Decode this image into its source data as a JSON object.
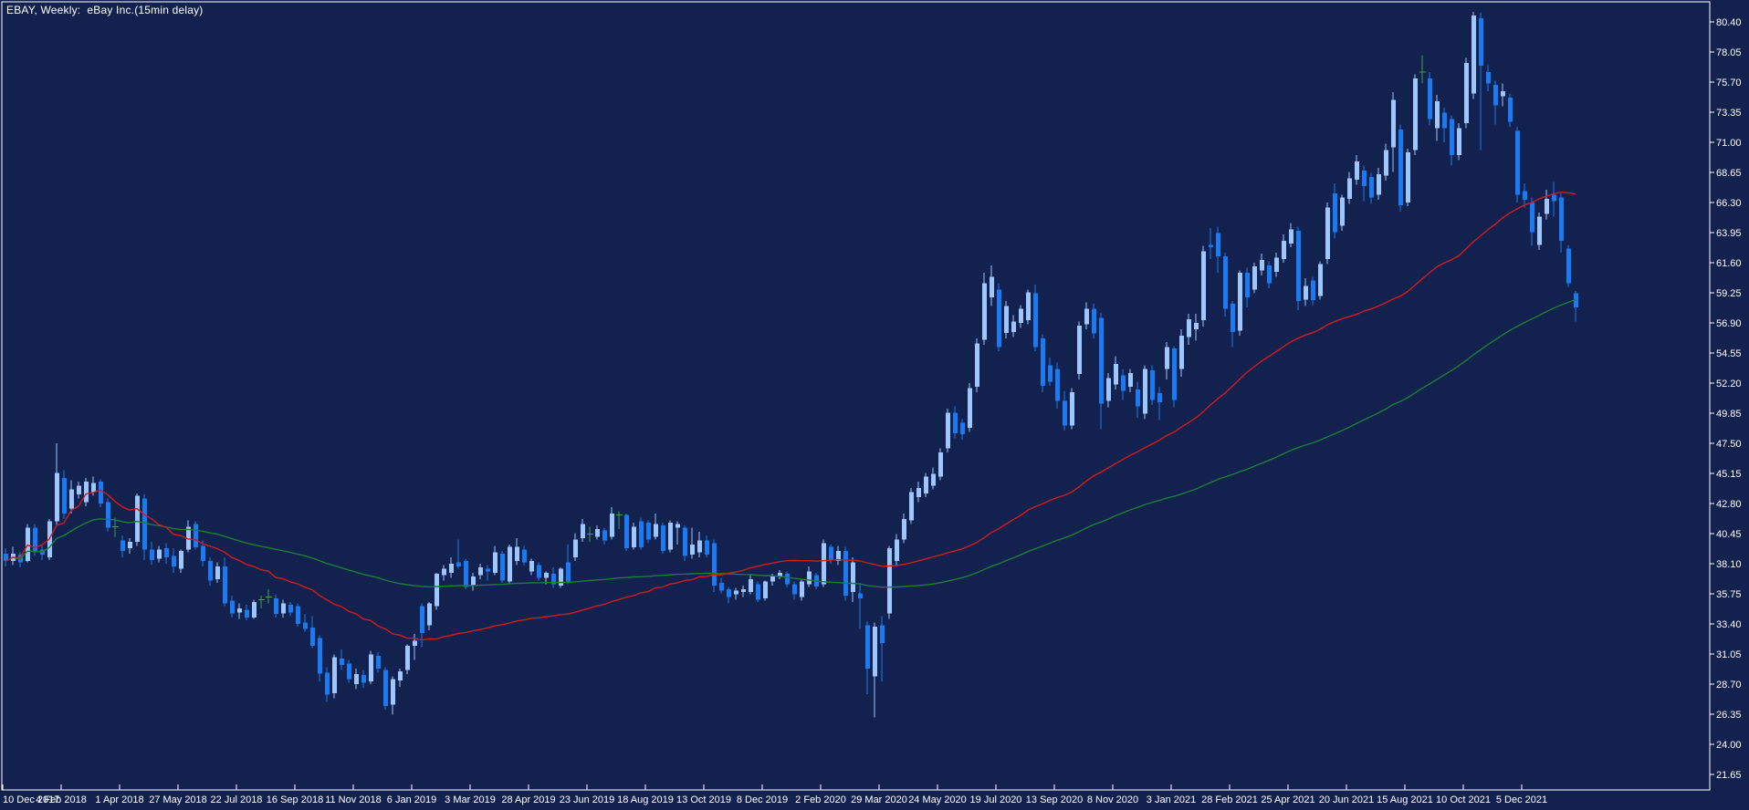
{
  "window": {
    "title": "EBAY, Weekly:  eBay Inc.(15min delay)",
    "symbol": "EBAY",
    "timeframe": "Weekly",
    "description": "eBay Inc.(15min delay)"
  },
  "chart_data": {
    "type": "candlestick",
    "title": "EBAY, Weekly:  eBay Inc.(15min delay)",
    "grid": false,
    "legend_position": "none",
    "price_axis_side": "right",
    "ylim": [
      20.4,
      82.0
    ],
    "y_tick_step": 2.35,
    "y_tick_labels": [
      "80.40",
      "78.05",
      "75.70",
      "73.35",
      "71.00",
      "68.65",
      "66.30",
      "63.95",
      "61.60",
      "59.25",
      "56.90",
      "54.55",
      "52.20",
      "49.85",
      "47.50",
      "45.15",
      "42.80",
      "40.45",
      "38.10",
      "35.75",
      "33.40",
      "31.05",
      "28.70",
      "26.35",
      "24.00",
      "21.65"
    ],
    "x_labels": [
      "10 Dec 2017",
      "4 Feb 2018",
      "1 Apr 2018",
      "27 May 2018",
      "22 Jul 2018",
      "16 Sep 2018",
      "11 Nov 2018",
      "6 Jan 2019",
      "3 Mar 2019",
      "28 Apr 2019",
      "23 Jun 2019",
      "18 Aug 2019",
      "13 Oct 2019",
      "8 Dec 2019",
      "2 Feb 2020",
      "29 Mar 2020",
      "24 May 2020",
      "19 Jul 2020",
      "13 Sep 2020",
      "8 Nov 2020",
      "3 Jan 2021",
      "28 Feb 2021",
      "25 Apr 2021",
      "20 Jun 2021",
      "15 Aug 2021",
      "10 Oct 2021",
      "5 Dec 2021"
    ],
    "weeks_per_x_label": 8,
    "overlays": [
      {
        "name": "ma-slow",
        "type": "sma",
        "period": 100,
        "color": "#1b7e35"
      },
      {
        "name": "ma-fast",
        "type": "sma",
        "period": 50,
        "color": "#d41b1b"
      }
    ],
    "colors": {
      "background": "#13214f",
      "border": "#ffffff",
      "text": "#ffffff",
      "bull_candle": "#9cc6fd",
      "bear_candle": "#1b7af2",
      "doji_candle": "#35a152",
      "ma_fast": "#d41b1b",
      "ma_slow": "#1b7e35"
    },
    "ohlc": [
      [
        38.9,
        39.3,
        37.9,
        38.3
      ],
      [
        38.3,
        39.4,
        38.0,
        38.9
      ],
      [
        38.8,
        39.0,
        37.8,
        38.2
      ],
      [
        38.3,
        41.2,
        38.2,
        40.9
      ],
      [
        40.9,
        41.2,
        38.7,
        39.0
      ],
      [
        39.2,
        39.6,
        38.4,
        38.8
      ],
      [
        38.6,
        41.6,
        38.4,
        41.4
      ],
      [
        41.4,
        47.5,
        41.1,
        45.2
      ],
      [
        44.8,
        45.4,
        41.6,
        42.0
      ],
      [
        42.4,
        44.6,
        42.0,
        43.9
      ],
      [
        43.5,
        44.5,
        43.2,
        44.2
      ],
      [
        42.9,
        44.8,
        42.6,
        44.5
      ],
      [
        43.7,
        44.9,
        43.4,
        44.4
      ],
      [
        44.5,
        44.7,
        42.5,
        42.8
      ],
      [
        42.9,
        43.2,
        40.6,
        40.9
      ],
      [
        41.0,
        41.7,
        40.2,
        41.0
      ],
      [
        39.9,
        40.3,
        38.6,
        39.1
      ],
      [
        39.3,
        40.1,
        38.9,
        39.8
      ],
      [
        39.8,
        43.6,
        39.5,
        43.4
      ],
      [
        43.2,
        43.5,
        38.4,
        39.2
      ],
      [
        39.2,
        39.8,
        38.0,
        38.4
      ],
      [
        38.5,
        39.5,
        38.2,
        39.2
      ],
      [
        39.3,
        39.7,
        38.1,
        38.6
      ],
      [
        38.7,
        39.3,
        37.4,
        37.9
      ],
      [
        37.7,
        39.2,
        37.4,
        39.1
      ],
      [
        39.2,
        41.5,
        39.0,
        41.0
      ],
      [
        41.2,
        41.4,
        39.2,
        39.4
      ],
      [
        39.5,
        39.9,
        37.9,
        38.3
      ],
      [
        38.3,
        38.6,
        36.4,
        36.8
      ],
      [
        36.9,
        38.2,
        36.6,
        37.9
      ],
      [
        37.9,
        38.6,
        34.8,
        35.0
      ],
      [
        35.2,
        35.6,
        33.9,
        34.2
      ],
      [
        34.3,
        35.0,
        33.8,
        34.6
      ],
      [
        34.5,
        34.9,
        33.7,
        33.9
      ],
      [
        33.9,
        35.3,
        33.8,
        35.1
      ],
      [
        35.2,
        35.6,
        34.6,
        35.3
      ],
      [
        35.4,
        36.1,
        35.0,
        35.5
      ],
      [
        35.4,
        35.7,
        33.9,
        34.2
      ],
      [
        34.2,
        35.3,
        33.9,
        35.0
      ],
      [
        34.9,
        35.1,
        34.0,
        34.3
      ],
      [
        34.8,
        35.0,
        33.2,
        33.4
      ],
      [
        33.5,
        34.2,
        32.8,
        33.0
      ],
      [
        33.1,
        34.0,
        31.5,
        31.7
      ],
      [
        32.3,
        32.5,
        28.9,
        29.5
      ],
      [
        29.6,
        30.0,
        27.3,
        27.9
      ],
      [
        28.0,
        31.0,
        27.6,
        30.8
      ],
      [
        30.7,
        31.4,
        29.8,
        30.2
      ],
      [
        30.3,
        30.6,
        28.8,
        29.1
      ],
      [
        28.7,
        29.9,
        28.3,
        29.5
      ],
      [
        29.4,
        29.8,
        28.4,
        28.8
      ],
      [
        28.9,
        31.3,
        28.7,
        31.0
      ],
      [
        30.9,
        31.2,
        29.6,
        29.9
      ],
      [
        29.8,
        30.0,
        26.7,
        27.0
      ],
      [
        27.1,
        29.3,
        26.3,
        29.1
      ],
      [
        29.0,
        29.9,
        28.5,
        29.7
      ],
      [
        29.8,
        31.8,
        29.5,
        31.7
      ],
      [
        31.7,
        32.6,
        30.6,
        32.1
      ],
      [
        34.8,
        35.0,
        31.6,
        32.7
      ],
      [
        33.3,
        35.1,
        32.9,
        35.0
      ],
      [
        34.8,
        37.4,
        34.5,
        37.3
      ],
      [
        37.2,
        38.0,
        36.8,
        37.7
      ],
      [
        37.4,
        38.6,
        37.0,
        38.1
      ],
      [
        38.2,
        40.0,
        37.7,
        37.9
      ],
      [
        38.3,
        38.5,
        36.1,
        36.3
      ],
      [
        36.4,
        37.4,
        36.0,
        37.1
      ],
      [
        37.2,
        38.1,
        36.9,
        37.8
      ],
      [
        37.7,
        38.0,
        36.8,
        37.5
      ],
      [
        37.4,
        39.5,
        37.2,
        39.0
      ],
      [
        38.9,
        39.1,
        36.6,
        36.8
      ],
      [
        36.7,
        39.6,
        36.5,
        39.4
      ],
      [
        38.3,
        40.1,
        38.0,
        39.4
      ],
      [
        39.2,
        39.5,
        38.0,
        38.2
      ],
      [
        37.5,
        38.5,
        37.2,
        38.3
      ],
      [
        38.0,
        38.2,
        36.8,
        37.0
      ],
      [
        37.0,
        37.5,
        36.5,
        37.4
      ],
      [
        37.3,
        37.8,
        36.2,
        36.5
      ],
      [
        36.4,
        37.8,
        36.2,
        37.7
      ],
      [
        38.2,
        39.6,
        36.5,
        36.7
      ],
      [
        38.6,
        40.5,
        38.3,
        40.0
      ],
      [
        40.1,
        41.6,
        39.8,
        41.2
      ],
      [
        40.4,
        41.0,
        39.8,
        40.4
      ],
      [
        40.2,
        41.1,
        40.0,
        40.8
      ],
      [
        40.7,
        40.9,
        39.6,
        39.9
      ],
      [
        40.2,
        42.5,
        40.0,
        42.0
      ],
      [
        42.0,
        42.2,
        40.8,
        41.9
      ],
      [
        41.9,
        42.0,
        39.1,
        39.3
      ],
      [
        39.4,
        41.3,
        39.2,
        41.0
      ],
      [
        41.4,
        41.7,
        39.2,
        39.4
      ],
      [
        41.3,
        41.5,
        39.7,
        40.0
      ],
      [
        40.2,
        42.0,
        40.0,
        41.2
      ],
      [
        41.1,
        41.3,
        38.9,
        39.1
      ],
      [
        39.2,
        41.5,
        39.0,
        41.3
      ],
      [
        40.9,
        41.4,
        39.6,
        41.2
      ],
      [
        40.9,
        41.1,
        38.3,
        38.7
      ],
      [
        38.8,
        40.9,
        38.5,
        39.6
      ],
      [
        39.0,
        40.6,
        38.6,
        39.9
      ],
      [
        39.9,
        40.3,
        38.6,
        38.8
      ],
      [
        39.7,
        40.0,
        35.9,
        36.4
      ],
      [
        36.6,
        37.0,
        35.8,
        36.0
      ],
      [
        36.1,
        36.3,
        35.0,
        35.5
      ],
      [
        35.7,
        36.2,
        35.3,
        36.0
      ],
      [
        35.9,
        36.4,
        35.5,
        36.1
      ],
      [
        35.9,
        37.2,
        35.7,
        36.9
      ],
      [
        36.5,
        36.7,
        35.1,
        35.3
      ],
      [
        35.4,
        36.8,
        35.2,
        36.7
      ],
      [
        36.7,
        37.3,
        36.4,
        37.1
      ],
      [
        37.1,
        37.6,
        36.9,
        37.4
      ],
      [
        37.3,
        37.5,
        36.3,
        36.5
      ],
      [
        36.5,
        36.7,
        35.3,
        35.7
      ],
      [
        35.5,
        36.9,
        35.2,
        36.7
      ],
      [
        36.5,
        37.9,
        36.3,
        37.5
      ],
      [
        37.2,
        37.4,
        36.1,
        36.3
      ],
      [
        36.5,
        40.0,
        36.3,
        39.7
      ],
      [
        39.4,
        39.6,
        38.1,
        38.4
      ],
      [
        38.3,
        39.5,
        38.0,
        39.1
      ],
      [
        39.1,
        39.4,
        35.2,
        35.6
      ],
      [
        35.9,
        38.6,
        35.1,
        38.2
      ],
      [
        35.8,
        36.6,
        33.0,
        35.4
      ],
      [
        33.3,
        33.6,
        27.9,
        29.9
      ],
      [
        29.3,
        33.5,
        26.1,
        33.2
      ],
      [
        33.3,
        34.0,
        28.9,
        31.9
      ],
      [
        34.2,
        39.5,
        33.8,
        39.3
      ],
      [
        38.3,
        40.4,
        38.0,
        40.0
      ],
      [
        40.0,
        42.0,
        39.7,
        41.6
      ],
      [
        41.5,
        44.0,
        41.2,
        43.7
      ],
      [
        43.3,
        44.5,
        42.9,
        44.0
      ],
      [
        43.6,
        45.2,
        43.3,
        44.9
      ],
      [
        44.2,
        45.6,
        43.9,
        45.1
      ],
      [
        44.9,
        47.1,
        44.6,
        46.8
      ],
      [
        47.1,
        50.2,
        46.8,
        49.9
      ],
      [
        49.9,
        50.4,
        47.9,
        48.3
      ],
      [
        49.1,
        49.4,
        47.8,
        48.2
      ],
      [
        48.7,
        52.2,
        48.4,
        51.8
      ],
      [
        51.9,
        55.7,
        51.5,
        55.3
      ],
      [
        55.6,
        60.8,
        55.2,
        60.0
      ],
      [
        58.9,
        61.4,
        58.2,
        60.5
      ],
      [
        59.5,
        60.0,
        54.7,
        55.0
      ],
      [
        56.1,
        58.6,
        55.7,
        58.2
      ],
      [
        56.2,
        57.5,
        55.8,
        57.0
      ],
      [
        56.9,
        58.3,
        56.5,
        58.0
      ],
      [
        57.1,
        59.5,
        56.8,
        59.3
      ],
      [
        59.2,
        59.9,
        54.7,
        55.0
      ],
      [
        55.7,
        56.0,
        51.5,
        52.0
      ],
      [
        53.6,
        54.2,
        52.0,
        52.3
      ],
      [
        53.3,
        53.8,
        50.2,
        50.8
      ],
      [
        50.8,
        51.6,
        48.5,
        48.9
      ],
      [
        48.9,
        51.8,
        48.6,
        51.5
      ],
      [
        52.9,
        57.0,
        52.5,
        56.7
      ],
      [
        56.8,
        58.5,
        56.4,
        58.0
      ],
      [
        58.0,
        58.4,
        55.7,
        56.1
      ],
      [
        57.3,
        57.7,
        48.6,
        50.6
      ],
      [
        50.8,
        53.0,
        50.3,
        52.6
      ],
      [
        52.1,
        54.3,
        51.7,
        53.7
      ],
      [
        52.8,
        53.3,
        50.9,
        51.6
      ],
      [
        51.9,
        53.3,
        51.5,
        53.0
      ],
      [
        51.7,
        52.3,
        49.5,
        50.4
      ],
      [
        49.8,
        53.6,
        49.4,
        53.3
      ],
      [
        53.2,
        53.6,
        50.5,
        50.9
      ],
      [
        51.4,
        51.9,
        49.3,
        50.7
      ],
      [
        53.3,
        55.4,
        52.5,
        55.0
      ],
      [
        54.9,
        55.1,
        50.3,
        50.9
      ],
      [
        53.3,
        56.4,
        52.7,
        55.9
      ],
      [
        55.8,
        57.6,
        55.2,
        57.2
      ],
      [
        56.4,
        57.6,
        55.5,
        56.9
      ],
      [
        57.1,
        62.9,
        56.6,
        62.5
      ],
      [
        63.0,
        64.3,
        61.9,
        62.8
      ],
      [
        63.9,
        64.4,
        60.8,
        62.1
      ],
      [
        62.1,
        62.4,
        57.4,
        58.0
      ],
      [
        58.4,
        58.6,
        55.0,
        56.2
      ],
      [
        56.3,
        61.0,
        55.9,
        60.8
      ],
      [
        60.8,
        61.2,
        58.1,
        58.9
      ],
      [
        59.5,
        61.6,
        59.2,
        61.3
      ],
      [
        61.0,
        62.3,
        60.6,
        61.8
      ],
      [
        61.4,
        61.7,
        59.6,
        60.0
      ],
      [
        60.9,
        62.4,
        60.5,
        62.0
      ],
      [
        61.9,
        63.8,
        61.6,
        63.3
      ],
      [
        63.1,
        64.7,
        62.8,
        64.2
      ],
      [
        64.1,
        64.4,
        57.9,
        58.6
      ],
      [
        58.7,
        60.4,
        58.2,
        59.8
      ],
      [
        60.2,
        60.5,
        58.3,
        58.7
      ],
      [
        59.0,
        61.7,
        58.7,
        61.5
      ],
      [
        61.9,
        66.3,
        61.5,
        65.9
      ],
      [
        67.0,
        67.8,
        63.5,
        64.0
      ],
      [
        64.5,
        66.9,
        64.1,
        66.7
      ],
      [
        66.6,
        68.7,
        66.2,
        68.2
      ],
      [
        68.1,
        70.0,
        67.7,
        69.5
      ],
      [
        68.8,
        69.2,
        66.4,
        67.6
      ],
      [
        68.3,
        68.6,
        66.2,
        66.7
      ],
      [
        66.9,
        69.0,
        66.5,
        68.5
      ],
      [
        68.4,
        70.9,
        68.0,
        70.4
      ],
      [
        70.6,
        74.9,
        68.7,
        74.3
      ],
      [
        72.0,
        72.4,
        65.6,
        66.1
      ],
      [
        66.3,
        70.5,
        66.0,
        70.2
      ],
      [
        70.4,
        76.3,
        70.0,
        76.0
      ],
      [
        76.5,
        77.8,
        75.6,
        76.5
      ],
      [
        76.0,
        76.5,
        72.3,
        72.8
      ],
      [
        72.1,
        74.7,
        71.1,
        74.2
      ],
      [
        73.3,
        73.7,
        71.0,
        72.1
      ],
      [
        72.8,
        73.1,
        69.2,
        70.0
      ],
      [
        70.0,
        72.5,
        69.6,
        72.1
      ],
      [
        72.5,
        77.6,
        72.1,
        77.2
      ],
      [
        74.8,
        81.2,
        74.4,
        80.9
      ],
      [
        80.7,
        81.1,
        70.4,
        77.0
      ],
      [
        76.5,
        77.0,
        75.0,
        75.6
      ],
      [
        75.5,
        75.8,
        72.4,
        73.9
      ],
      [
        74.6,
        75.6,
        73.8,
        75.0
      ],
      [
        74.5,
        74.8,
        72.2,
        72.6
      ],
      [
        71.9,
        72.2,
        66.3,
        66.9
      ],
      [
        67.2,
        67.8,
        65.9,
        66.5
      ],
      [
        66.3,
        66.7,
        62.9,
        64.0
      ],
      [
        63.0,
        65.5,
        62.6,
        65.2
      ],
      [
        65.4,
        67.3,
        65.0,
        66.6
      ],
      [
        66.9,
        67.9,
        65.2,
        66.4
      ],
      [
        66.7,
        67.0,
        62.4,
        63.3
      ],
      [
        62.7,
        63.0,
        59.7,
        60.0
      ],
      [
        59.2,
        59.4,
        57.0,
        58.1
      ]
    ]
  }
}
